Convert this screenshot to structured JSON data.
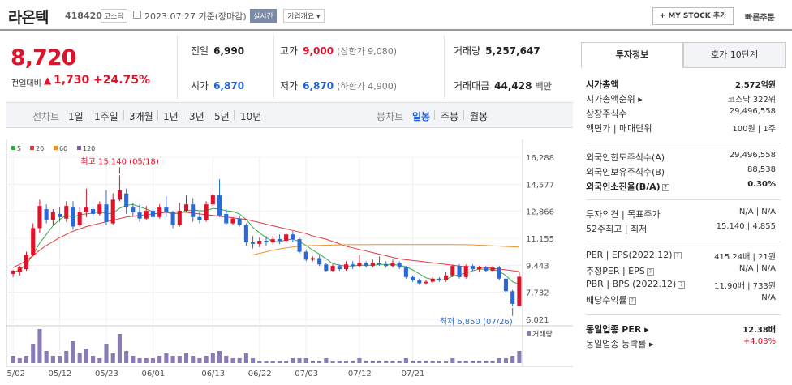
{
  "header": {
    "name": "라온텍",
    "code": "418420",
    "market": "코스닥",
    "date": "2023.07.27 기준(장마감)",
    "realtime": "실시간",
    "company_btn": "기업개요 ▾",
    "mystock_btn": "+ MY STOCK 추가",
    "quick_order": "빠른주문"
  },
  "price": {
    "current": "8,720",
    "change_label": "전일대비",
    "change_arrow": "▲",
    "change": "1,730",
    "change_pct": "+24.75%"
  },
  "stats": {
    "prev_close_label": "전일",
    "prev_close": "6,990",
    "high_label": "고가",
    "high": "9,000",
    "upper_limit": "(상한가 9,080)",
    "volume_label": "거래량",
    "volume": "5,257,647",
    "open_label": "시가",
    "open": "6,870",
    "low_label": "저가",
    "low": "6,870",
    "lower_limit": "(하한가 4,900)",
    "amount_label": "거래대금",
    "amount": "44,428",
    "amount_unit": "백만"
  },
  "tabs": {
    "line_chart": "선차트",
    "periods": [
      "1일",
      "1주일",
      "3개월",
      "1년",
      "3년",
      "5년",
      "10년"
    ],
    "candle_chart": "봉차트",
    "candle_periods": [
      "일봉",
      "주봉",
      "월봉"
    ]
  },
  "chart_data": {
    "type": "candlestick",
    "legend": [
      {
        "name": "5",
        "color": "#3aa845"
      },
      {
        "name": "20",
        "color": "#e53a3a"
      },
      {
        "name": "60",
        "color": "#e8942a"
      },
      {
        "name": "120",
        "color": "#7b5ea7"
      }
    ],
    "y_ticks": [
      "16,288",
      "14,577",
      "12,866",
      "11,155",
      "9,443",
      "7,732",
      "6,021"
    ],
    "ylim": [
      6021,
      16288
    ],
    "x_ticks": [
      "05/02",
      "05/12",
      "05/23",
      "06/01",
      "06/13",
      "06/22",
      "07/03",
      "07/12",
      "07/21"
    ],
    "max_annotation": "최고 15,140 (05/18)",
    "min_annotation": "최저 6,850 (07/26)",
    "volume_label": "거래량",
    "candles": [
      [
        8900,
        9100,
        8700,
        9150
      ],
      [
        9000,
        9300,
        8800,
        9400
      ],
      [
        9200,
        10100,
        9100,
        10300
      ],
      [
        10100,
        11800,
        10000,
        12100
      ],
      [
        11800,
        13200,
        11500,
        13600
      ],
      [
        13000,
        12300,
        12100,
        13300
      ],
      [
        12300,
        12800,
        12000,
        13000
      ],
      [
        12700,
        12500,
        12200,
        13100
      ],
      [
        12400,
        13200,
        12200,
        13500
      ],
      [
        13100,
        11900,
        11700,
        13500
      ],
      [
        12000,
        12800,
        11900,
        13100
      ],
      [
        12800,
        13100,
        12500,
        14300
      ],
      [
        13000,
        12700,
        12400,
        13200
      ],
      [
        12700,
        13300,
        12600,
        13500
      ],
      [
        13300,
        12200,
        12000,
        14200
      ],
      [
        12100,
        13600,
        12000,
        14000
      ],
      [
        13600,
        14200,
        13500,
        15140
      ],
      [
        14000,
        13100,
        12700,
        14300
      ],
      [
        13100,
        12800,
        12500,
        13400
      ],
      [
        12800,
        12400,
        12200,
        13300
      ],
      [
        12400,
        12900,
        12300,
        13200
      ],
      [
        12900,
        12500,
        12300,
        13100
      ],
      [
        12500,
        13100,
        12400,
        13300
      ],
      [
        13100,
        12800,
        12500,
        13800
      ],
      [
        12800,
        12000,
        11800,
        12900
      ],
      [
        12000,
        12900,
        11900,
        13400
      ],
      [
        12900,
        13300,
        12800,
        13900
      ],
      [
        13300,
        12500,
        12200,
        13700
      ],
      [
        12500,
        12300,
        12100,
        12800
      ],
      [
        12300,
        13300,
        12200,
        13500
      ],
      [
        13300,
        13900,
        13200,
        14000
      ],
      [
        13900,
        12600,
        12500,
        14900
      ],
      [
        12700,
        12100,
        12000,
        13000
      ],
      [
        12100,
        12400,
        12000,
        12500
      ],
      [
        12400,
        12000,
        11900,
        12600
      ],
      [
        12000,
        10900,
        10700,
        12100
      ],
      [
        10900,
        10800,
        10500,
        11300
      ],
      [
        10800,
        11000,
        10600,
        11200
      ],
      [
        11000,
        10900,
        10700,
        11300
      ],
      [
        10900,
        11100,
        10800,
        11300
      ],
      [
        11100,
        11000,
        10800,
        11400
      ],
      [
        11000,
        11400,
        10900,
        11500
      ],
      [
        11400,
        11100,
        10900,
        11600
      ],
      [
        11100,
        10300,
        10200,
        11200
      ],
      [
        10300,
        9800,
        9700,
        10400
      ],
      [
        9800,
        9900,
        9700,
        10000
      ],
      [
        9900,
        9500,
        9400,
        10100
      ],
      [
        9500,
        9100,
        9000,
        9600
      ],
      [
        9100,
        9400,
        9000,
        9500
      ],
      [
        9400,
        9200,
        9100,
        9500
      ],
      [
        9200,
        9500,
        9100,
        9700
      ],
      [
        9500,
        9400,
        9200,
        9700
      ],
      [
        9400,
        9600,
        9300,
        10100
      ],
      [
        9600,
        9400,
        9300,
        9700
      ],
      [
        9400,
        9600,
        9300,
        9800
      ],
      [
        9600,
        9500,
        9400,
        10000
      ],
      [
        9500,
        9400,
        9300,
        9700
      ],
      [
        9400,
        9600,
        9300,
        9800
      ],
      [
        9600,
        9300,
        9200,
        9700
      ],
      [
        9300,
        8700,
        8600,
        9400
      ],
      [
        8700,
        8500,
        8400,
        8800
      ],
      [
        8500,
        8300,
        8200,
        8600
      ],
      [
        8300,
        8400,
        8200,
        8500
      ],
      [
        8400,
        8600,
        8300,
        8700
      ],
      [
        8600,
        8500,
        8400,
        8700
      ],
      [
        8500,
        8800,
        8400,
        9000
      ],
      [
        8800,
        9400,
        8700,
        9500
      ],
      [
        9400,
        8700,
        8600,
        9500
      ],
      [
        8700,
        9400,
        8600,
        9500
      ],
      [
        9400,
        9200,
        9100,
        9500
      ],
      [
        9200,
        9300,
        9000,
        9400
      ],
      [
        9300,
        9100,
        9000,
        9400
      ],
      [
        9100,
        9300,
        9000,
        9400
      ],
      [
        9300,
        8600,
        8500,
        9400
      ],
      [
        8600,
        7800,
        7700,
        8700
      ],
      [
        7800,
        7000,
        6850,
        7900
      ],
      [
        6870,
        8720,
        6870,
        9000
      ]
    ],
    "ma": [
      {
        "period": 5,
        "values": [
          9000,
          9150,
          9500,
          10100,
          10850,
          11400,
          11950,
          12350,
          12600,
          12500,
          12650,
          12700,
          12750,
          12850,
          12700,
          12750,
          13050,
          13250,
          13300,
          13150,
          13000,
          12850,
          12800,
          12800,
          12700,
          12750,
          12900,
          12950,
          12900,
          12900,
          13050,
          13000,
          12900,
          12850,
          12700,
          12350,
          11850,
          11500,
          11200,
          10950,
          10950,
          11050,
          11100,
          10950,
          10700,
          10400,
          10150,
          9850,
          9550,
          9450,
          9400,
          9400,
          9450,
          9450,
          9450,
          9500,
          9500,
          9500,
          9450,
          9350,
          9150,
          8900,
          8650,
          8550,
          8500,
          8550,
          8750,
          8850,
          8950,
          9100,
          9200,
          9200,
          9200,
          9050,
          8800,
          8400,
          8250
        ]
      },
      {
        "period": 20,
        "values": [
          9300,
          9500,
          9750,
          10050,
          10400,
          10700,
          10950,
          11200,
          11400,
          11600,
          11750,
          11900,
          12000,
          12100,
          12200,
          12300,
          12400,
          12500,
          12550,
          12600,
          12650,
          12700,
          12750,
          12800,
          12800,
          12800,
          12800,
          12750,
          12700,
          12650,
          12600,
          12550,
          12500,
          12450,
          12400,
          12350,
          12250,
          12150,
          12050,
          11950,
          11850,
          11750,
          11650,
          11550,
          11450,
          11300,
          11200,
          11100,
          10950,
          10800,
          10650,
          10550,
          10450,
          10350,
          10250,
          10150,
          10050,
          9950,
          9850,
          9800,
          9750,
          9700,
          9650,
          9600,
          9550,
          9500,
          9450,
          9400,
          9350,
          9350,
          9300,
          9300,
          9250,
          9200,
          9150,
          9100,
          9050
        ]
      },
      {
        "period": 60,
        "values": [
          null,
          null,
          null,
          null,
          null,
          null,
          null,
          null,
          null,
          null,
          null,
          null,
          null,
          null,
          null,
          null,
          null,
          null,
          null,
          null,
          null,
          null,
          null,
          null,
          null,
          null,
          null,
          null,
          null,
          null,
          null,
          null,
          null,
          null,
          null,
          null,
          10100,
          10200,
          10300,
          10400,
          10480,
          10550,
          10600,
          10650,
          10680,
          10700,
          10710,
          10720,
          10730,
          10740,
          10750,
          10750,
          10750,
          10750,
          10760,
          10760,
          10760,
          10760,
          10760,
          10760,
          10760,
          10760,
          10760,
          10760,
          10760,
          10760,
          10760,
          10750,
          10750,
          10740,
          10720,
          10700,
          10680,
          10660,
          10640,
          10620,
          10600
        ]
      }
    ],
    "volume": [
      3,
      2,
      3,
      8,
      14,
      5,
      3,
      3,
      5,
      9,
      4,
      6,
      3,
      2,
      8,
      4,
      12,
      5,
      3,
      2,
      2,
      2,
      3,
      4,
      3,
      3,
      4,
      3,
      2,
      3,
      4,
      5,
      3,
      2,
      2,
      4,
      2,
      1,
      1,
      1,
      1,
      1,
      2,
      2,
      2,
      1,
      1,
      2,
      1,
      1,
      1,
      1,
      2,
      1,
      1,
      1,
      1,
      1,
      1,
      2,
      1,
      1,
      1,
      1,
      1,
      1,
      2,
      1,
      1,
      1,
      1,
      1,
      1,
      2,
      2,
      3,
      5
    ]
  },
  "right": {
    "tab_invest": "투자정보",
    "tab_hoga": "호가 10단계",
    "rows1": [
      {
        "l": "시가총액",
        "r": "2,572억원",
        "bold": true
      },
      {
        "l": "시가총액순위 ▸",
        "r": "코스닥 322위"
      },
      {
        "l": "상장주식수",
        "r": "29,496,558"
      },
      {
        "l": "액면가 | 매매단위",
        "r": "100원 | 1주"
      }
    ],
    "rows2": [
      {
        "l": "외국인한도주식수(A)",
        "r": "29,496,558"
      },
      {
        "l": "외국인보유주식수(B)",
        "r": "88,538"
      },
      {
        "l": "외국인소진율(B/A)",
        "r": "0.30%",
        "bold": true,
        "q": true
      }
    ],
    "rows3": [
      {
        "l": "투자의견 | 목표주가",
        "r": "N/A | N/A"
      },
      {
        "l": "52주최고 | 최저",
        "r": "15,140 | 4,855"
      }
    ],
    "rows4": [
      {
        "l": "PER | EPS(2022.12)",
        "r": "415.24배 | 21원",
        "q": true
      },
      {
        "l": "추정PER | EPS",
        "r": "N/A | N/A",
        "q": true
      },
      {
        "l": "PBR | BPS (2022.12)",
        "r": "11.90배 | 733원",
        "q": true
      },
      {
        "l": "배당수익률",
        "r": "N/A",
        "q": true
      }
    ],
    "rows5": [
      {
        "l": "동일업종 PER ▸",
        "r": "12.38배",
        "bold": true
      },
      {
        "l": "동일업종 등락률 ▸",
        "r": "+4.08%",
        "red": true
      }
    ]
  }
}
